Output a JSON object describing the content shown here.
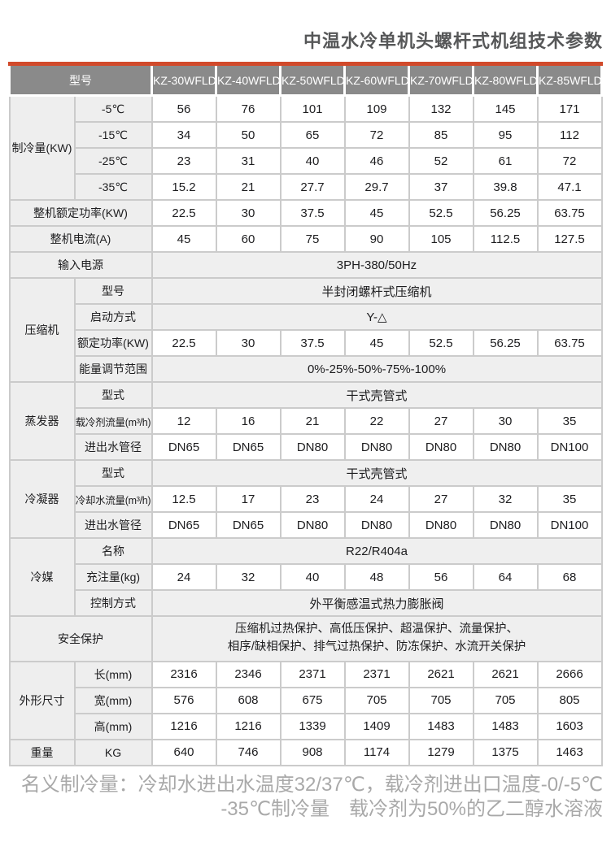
{
  "title": "中温水冷单机头螺杆式机组技术参数",
  "colors": {
    "accent": "#d14a2b",
    "header_bg": "#8a8a8a",
    "header_text": "#ffffff",
    "label_bg": "#eeeeee",
    "merged_value_bg": "#efefef",
    "border": "#cbcbcb",
    "body_text": "#1d1d1f",
    "title_text": "#565758",
    "footnote_text": "#a9a9a9"
  },
  "table": {
    "header": {
      "label": "型号",
      "models": [
        "KZ-30WFLD",
        "KZ-40WFLD",
        "KZ-50WFLD",
        "KZ-60WFLD",
        "KZ-70WFLD",
        "KZ-80WFLD",
        "KZ-85WFLD"
      ]
    },
    "rows": [
      {
        "cells": [
          {
            "t": "制冷量(KW)",
            "k": "group",
            "rs": 4
          },
          {
            "t": "-5℃",
            "k": "sub"
          },
          "56",
          "76",
          "101",
          "109",
          "132",
          "145",
          "171"
        ]
      },
      {
        "cells": [
          {
            "t": "-15℃",
            "k": "sub"
          },
          "34",
          "50",
          "65",
          "72",
          "85",
          "95",
          "112"
        ]
      },
      {
        "cells": [
          {
            "t": "-25℃",
            "k": "sub"
          },
          "23",
          "31",
          "40",
          "46",
          "52",
          "61",
          "72"
        ]
      },
      {
        "cells": [
          {
            "t": "-35℃",
            "k": "sub"
          },
          "15.2",
          "21",
          "27.7",
          "29.7",
          "37",
          "39.8",
          "47.1"
        ]
      },
      {
        "cells": [
          {
            "t": "整机额定功率(KW)",
            "k": "label",
            "cs": 2
          },
          "22.5",
          "30",
          "37.5",
          "45",
          "52.5",
          "56.25",
          "63.75"
        ]
      },
      {
        "cells": [
          {
            "t": "整机电流(A)",
            "k": "label",
            "cs": 2
          },
          "45",
          "60",
          "75",
          "90",
          "105",
          "112.5",
          "127.5"
        ]
      },
      {
        "cells": [
          {
            "t": "输入电源",
            "k": "label",
            "cs": 2
          },
          {
            "t": "3PH-380/50Hz",
            "k": "span",
            "cs": 7
          }
        ]
      },
      {
        "cells": [
          {
            "t": "压缩机",
            "k": "group",
            "rs": 4
          },
          {
            "t": "型号",
            "k": "sub"
          },
          {
            "t": "半封闭螺杆式压缩机",
            "k": "span",
            "cs": 7
          }
        ]
      },
      {
        "cells": [
          {
            "t": "启动方式",
            "k": "sub"
          },
          {
            "t": "Y-△",
            "k": "span",
            "cs": 7
          }
        ]
      },
      {
        "cells": [
          {
            "t": "额定功率(KW)",
            "k": "sub"
          },
          "22.5",
          "30",
          "37.5",
          "45",
          "52.5",
          "56.25",
          "63.75"
        ]
      },
      {
        "cells": [
          {
            "t": "能量调节范围",
            "k": "sub"
          },
          {
            "t": "0%-25%-50%-75%-100%",
            "k": "span",
            "cs": 7
          }
        ]
      },
      {
        "cells": [
          {
            "t": "蒸发器",
            "k": "group",
            "rs": 3
          },
          {
            "t": "型式",
            "k": "sub"
          },
          {
            "t": "干式壳管式",
            "k": "span",
            "cs": 7
          }
        ]
      },
      {
        "cells": [
          {
            "t": "载冷剂流量(m³/h)",
            "k": "sub",
            "f": true
          },
          "12",
          "16",
          "21",
          "22",
          "27",
          "30",
          "35"
        ]
      },
      {
        "cells": [
          {
            "t": "进出水管径",
            "k": "sub"
          },
          "DN65",
          "DN65",
          "DN80",
          "DN80",
          "DN80",
          "DN80",
          "DN100"
        ]
      },
      {
        "cells": [
          {
            "t": "冷凝器",
            "k": "group",
            "rs": 3
          },
          {
            "t": "型式",
            "k": "sub"
          },
          {
            "t": "干式壳管式",
            "k": "span",
            "cs": 7
          }
        ]
      },
      {
        "cells": [
          {
            "t": "冷却水流量(m³/h)",
            "k": "sub",
            "f": true
          },
          "12.5",
          "17",
          "23",
          "24",
          "27",
          "32",
          "35"
        ]
      },
      {
        "cells": [
          {
            "t": "进出水管径",
            "k": "sub"
          },
          "DN65",
          "DN65",
          "DN80",
          "DN80",
          "DN80",
          "DN80",
          "DN100"
        ]
      },
      {
        "cells": [
          {
            "t": "冷媒",
            "k": "group",
            "rs": 3
          },
          {
            "t": "名称",
            "k": "sub"
          },
          {
            "t": "R22/R404a",
            "k": "span",
            "cs": 7
          }
        ]
      },
      {
        "cells": [
          {
            "t": "充注量(kg)",
            "k": "sub"
          },
          "24",
          "32",
          "40",
          "48",
          "56",
          "64",
          "68"
        ]
      },
      {
        "cells": [
          {
            "t": "控制方式",
            "k": "sub"
          },
          {
            "t": "外平衡感温式热力膨胀阀",
            "k": "span",
            "cs": 7
          }
        ]
      },
      {
        "cells": [
          {
            "t": "安全保护",
            "k": "label",
            "cs": 2
          },
          {
            "t": "压缩机过热保护、高低压保护、超温保护、流量保护、\n相序/缺相保护、排气过热保护、防冻保护、水流开关保护",
            "k": "span",
            "cs": 7,
            "m": true
          }
        ]
      },
      {
        "cells": [
          {
            "t": "外形尺寸",
            "k": "group",
            "rs": 3
          },
          {
            "t": "长(mm)",
            "k": "sub"
          },
          "2316",
          "2346",
          "2371",
          "2371",
          "2621",
          "2621",
          "2666"
        ]
      },
      {
        "cells": [
          {
            "t": "宽(mm)",
            "k": "sub"
          },
          "576",
          "608",
          "675",
          "705",
          "705",
          "705",
          "805"
        ]
      },
      {
        "cells": [
          {
            "t": "高(mm)",
            "k": "sub"
          },
          "1216",
          "1216",
          "1339",
          "1409",
          "1483",
          "1483",
          "1603"
        ]
      },
      {
        "cells": [
          {
            "t": "重量",
            "k": "group"
          },
          {
            "t": "KG",
            "k": "sub"
          },
          "640",
          "746",
          "908",
          "1174",
          "1279",
          "1375",
          "1463"
        ]
      }
    ]
  },
  "footnote": {
    "line1": "名义制冷量：冷却水进出水温度32/37℃，载冷剂进出口温度-0/-5℃",
    "line2": "-35℃制冷量　载冷剂为50%的乙二醇水溶液"
  }
}
